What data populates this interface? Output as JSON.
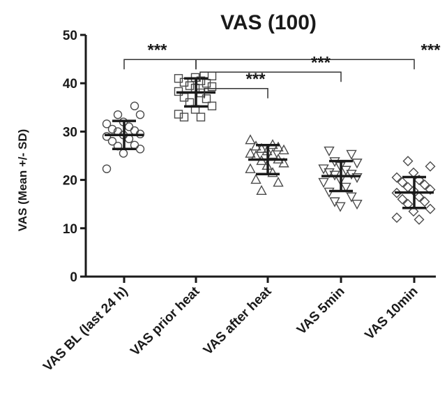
{
  "chart_data": {
    "type": "scatter",
    "title": "VAS (100)",
    "xlabel": "",
    "ylabel": "VAS (Mean +/- SD)",
    "ylim": [
      0,
      50
    ],
    "yticks": [
      0,
      10,
      20,
      30,
      40,
      50
    ],
    "grid": false,
    "categories": [
      "VAS BL (last 24 h)",
      "VAS prior heat",
      "VAS after heat",
      "VAS 5min",
      "VAS 10min"
    ],
    "series": [
      {
        "category": "VAS BL (last 24 h)",
        "marker": "circle",
        "mean": 29.3,
        "sd": 2.9,
        "values": [
          22.3,
          25.5,
          26.4,
          27,
          27.2,
          28,
          28.5,
          29,
          29.3,
          29.5,
          30,
          30.2,
          30.5,
          31,
          31.6,
          32,
          33.5,
          33.5,
          35.3
        ]
      },
      {
        "category": "VAS prior heat",
        "marker": "square",
        "mean": 38.1,
        "sd": 2.9,
        "values": [
          33,
          33,
          33.6,
          34.6,
          35.3,
          36,
          36.8,
          37.1,
          38,
          38.3,
          39,
          39.3,
          39.5,
          40,
          40.2,
          40.5,
          41,
          41.2,
          41.5
        ]
      },
      {
        "category": "VAS after heat",
        "marker": "triangle-up",
        "mean": 24.2,
        "sd": 3,
        "values": [
          17.8,
          19.5,
          20.1,
          21.5,
          22.3,
          23,
          23.5,
          24,
          24.3,
          25,
          25.3,
          25.5,
          26,
          26.2,
          26.5,
          26.8,
          27,
          27.3,
          28.3
        ]
      },
      {
        "category": "VAS 5min",
        "marker": "triangle-down",
        "mean": 20.8,
        "sd": 3.1,
        "values": [
          14.5,
          15,
          15.5,
          16.5,
          17.5,
          18.5,
          19.5,
          20,
          20.5,
          21,
          21.2,
          21.5,
          22,
          22.3,
          22.8,
          23.5,
          23.8,
          25.3,
          26
        ]
      },
      {
        "category": "VAS 10min",
        "marker": "diamond",
        "mean": 17.4,
        "sd": 3.2,
        "values": [
          11.8,
          12.2,
          13.5,
          14,
          15,
          15.5,
          16,
          16.5,
          17.3,
          17.8,
          18,
          18.5,
          19,
          19.5,
          20,
          20.5,
          21.5,
          22.8,
          23.9
        ]
      }
    ],
    "significance": [
      {
        "from": "VAS BL (last 24 h)",
        "to": "VAS prior heat",
        "y": 44.9,
        "label": "***"
      },
      {
        "from": "VAS prior heat",
        "to": "VAS 10min",
        "y": 44.9,
        "label": "***"
      },
      {
        "from": "VAS prior heat",
        "to": "VAS 5min",
        "y": 42.3,
        "label": "***"
      },
      {
        "from": "VAS prior heat",
        "to": "VAS after heat",
        "y": 38.9,
        "label": "***"
      }
    ]
  }
}
